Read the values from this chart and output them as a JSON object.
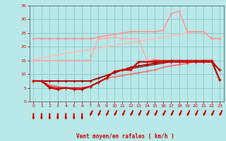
{
  "x": [
    0,
    1,
    2,
    3,
    4,
    5,
    6,
    7,
    8,
    9,
    10,
    11,
    12,
    13,
    14,
    15,
    16,
    17,
    18,
    19,
    20,
    21,
    22,
    23
  ],
  "background_color": "#b8e8e8",
  "grid_color": "#90c8c8",
  "xlabel": "Vent moyen/en rafales ( km/h )",
  "xlabel_color": "#cc0000",
  "tick_color": "#cc0000",
  "lines": [
    {
      "y": [
        7.5,
        7.5,
        7.5,
        7.5,
        7.5,
        7.5,
        7.5,
        7.5,
        8.5,
        9.5,
        10.5,
        11.5,
        12.0,
        12.5,
        13.0,
        13.5,
        14.0,
        14.5,
        14.5,
        14.5,
        14.5,
        14.5,
        14.5,
        7.5
      ],
      "color": "#880000",
      "linewidth": 0.9,
      "marker": null,
      "markersize": 0,
      "zorder": 2
    },
    {
      "y": [
        7.5,
        7.5,
        7.5,
        7.5,
        7.5,
        7.5,
        7.5,
        7.5,
        8.5,
        9.5,
        10.5,
        11.5,
        12.5,
        13.0,
        13.5,
        14.0,
        14.5,
        15.0,
        15.0,
        15.0,
        15.0,
        15.0,
        15.0,
        8.0
      ],
      "color": "#aa0000",
      "linewidth": 1.2,
      "marker": "+",
      "markersize": 3,
      "zorder": 3
    },
    {
      "y": [
        7.5,
        7.5,
        5.0,
        4.5,
        5.0,
        4.5,
        4.5,
        5.5,
        7.0,
        8.5,
        11.0,
        11.5,
        11.5,
        14.5,
        14.5,
        14.5,
        14.5,
        14.5,
        14.5,
        14.5,
        14.5,
        14.5,
        14.5,
        11.5
      ],
      "color": "#cc0000",
      "linewidth": 1.5,
      "marker": "+",
      "markersize": 3,
      "zorder": 4
    },
    {
      "y": [
        7.5,
        7.5,
        5.5,
        5.0,
        5.0,
        5.0,
        5.0,
        5.5,
        7.0,
        8.5,
        11.0,
        11.5,
        12.0,
        14.5,
        14.5,
        15.0,
        15.0,
        15.0,
        15.0,
        15.0,
        15.0,
        15.0,
        15.0,
        11.5
      ],
      "color": "#cc2222",
      "linewidth": 1.0,
      "marker": "+",
      "markersize": 3,
      "zorder": 3
    },
    {
      "y": [
        7.5,
        7.5,
        6.0,
        5.5,
        5.0,
        5.0,
        5.0,
        5.5,
        7.0,
        8.5,
        9.0,
        9.5,
        10.0,
        10.5,
        11.0,
        11.5,
        12.5,
        13.0,
        13.5,
        14.0,
        14.5,
        15.0,
        15.0,
        8.0
      ],
      "color": "#ee7777",
      "linewidth": 1.2,
      "marker": "+",
      "markersize": 3,
      "zorder": 2
    },
    {
      "y": [
        23.0,
        23.0,
        23.0,
        23.0,
        23.0,
        23.0,
        23.0,
        23.0,
        23.5,
        24.0,
        24.5,
        25.0,
        25.5,
        25.5,
        25.5,
        25.5,
        26.0,
        32.0,
        33.0,
        25.5,
        25.5,
        25.5,
        23.0,
        23.0
      ],
      "color": "#ff9999",
      "linewidth": 1.2,
      "marker": "+",
      "markersize": 3,
      "zorder": 2
    },
    {
      "y": [
        15.0,
        15.0,
        15.0,
        15.0,
        15.0,
        15.0,
        15.0,
        15.0,
        23.0,
        23.0,
        23.5,
        23.0,
        23.0,
        23.0,
        15.0,
        15.5,
        15.0,
        15.0,
        15.0,
        15.0,
        15.0,
        15.0,
        15.0,
        8.0
      ],
      "color": "#ffaaaa",
      "linewidth": 1.0,
      "marker": "+",
      "markersize": 3,
      "zorder": 2
    },
    {
      "y": [
        15.5,
        16.0,
        16.5,
        17.0,
        17.5,
        18.0,
        18.5,
        19.0,
        19.5,
        20.0,
        20.5,
        21.0,
        21.5,
        22.0,
        22.5,
        23.0,
        23.5,
        24.0,
        24.5,
        25.0,
        25.5,
        25.5,
        23.0,
        23.0
      ],
      "color": "#ffbbbb",
      "linewidth": 1.2,
      "marker": null,
      "markersize": 0,
      "zorder": 1
    }
  ],
  "wind_arrows": [
    {
      "xi": 0,
      "diag": false
    },
    {
      "xi": 1,
      "diag": false
    },
    {
      "xi": 2,
      "diag": false
    },
    {
      "xi": 3,
      "diag": false
    },
    {
      "xi": 4,
      "diag": false
    },
    {
      "xi": 5,
      "diag": false
    },
    {
      "xi": 6,
      "diag": false
    },
    {
      "xi": 7,
      "diag": true
    },
    {
      "xi": 8,
      "diag": true
    },
    {
      "xi": 9,
      "diag": true
    },
    {
      "xi": 10,
      "diag": true
    },
    {
      "xi": 11,
      "diag": true
    },
    {
      "xi": 12,
      "diag": true
    },
    {
      "xi": 13,
      "diag": true
    },
    {
      "xi": 14,
      "diag": true
    },
    {
      "xi": 15,
      "diag": true
    },
    {
      "xi": 16,
      "diag": true
    },
    {
      "xi": 17,
      "diag": true
    },
    {
      "xi": 18,
      "diag": true
    },
    {
      "xi": 19,
      "diag": true
    },
    {
      "xi": 20,
      "diag": true
    },
    {
      "xi": 21,
      "diag": true
    },
    {
      "xi": 22,
      "diag": true
    },
    {
      "xi": 23,
      "diag": true
    }
  ],
  "ylim": [
    0,
    35
  ],
  "xlim": [
    -0.5,
    23.5
  ],
  "yticks": [
    0,
    5,
    10,
    15,
    20,
    25,
    30,
    35
  ],
  "xticks": [
    0,
    1,
    2,
    3,
    4,
    5,
    6,
    7,
    8,
    9,
    10,
    11,
    12,
    13,
    14,
    15,
    16,
    17,
    18,
    19,
    20,
    21,
    22,
    23
  ]
}
